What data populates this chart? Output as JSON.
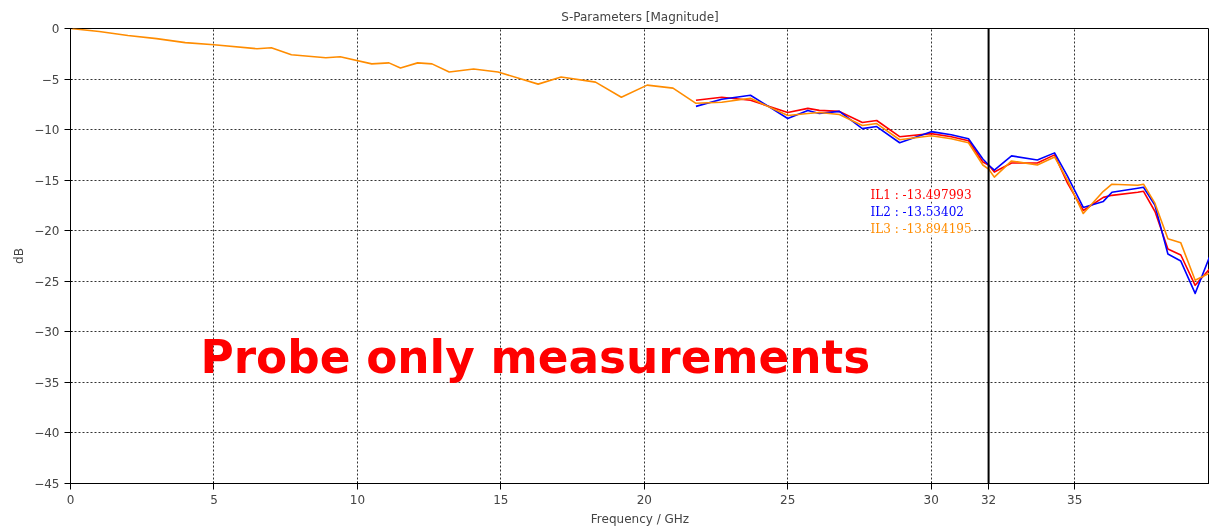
{
  "chart_data": {
    "type": "line",
    "title": "S-Parameters [Magnitude]",
    "xlabel": "Frequency / GHz",
    "ylabel": "dB",
    "x": [
      0,
      1,
      2,
      3,
      4,
      5,
      6.5,
      7,
      7.7,
      8.9,
      9.4,
      10.5,
      11.1,
      11.5,
      12.1,
      12.6,
      13.2,
      14.05,
      14.9,
      16.3,
      17.1,
      18.3,
      19.2,
      20.1,
      21.0,
      21.8,
      22.7,
      23.7,
      25.0,
      25.7,
      26.1,
      26.8,
      27.6,
      28.1,
      28.9,
      30.0,
      30.7,
      31.3,
      31.8,
      32.0,
      32.2,
      32.8,
      33.7,
      34.3,
      34.75,
      35.3,
      36.0,
      36.3,
      37.2,
      37.4,
      37.8,
      38.25,
      38.7,
      39.2,
      39.7
    ],
    "series": [
      {
        "name": "IL1",
        "color": "#ff0000",
        "values": [
          null,
          null,
          null,
          null,
          null,
          null,
          null,
          null,
          null,
          null,
          null,
          null,
          null,
          null,
          null,
          null,
          null,
          null,
          null,
          null,
          null,
          null,
          null,
          null,
          null,
          -7.1,
          -6.8,
          -7.1,
          -8.3,
          -7.9,
          -8.1,
          -8.2,
          -9.3,
          -9.1,
          -10.7,
          -10.4,
          -10.7,
          -11.1,
          -13.2,
          -13.5,
          -14.2,
          -13.3,
          -13.3,
          -12.5,
          -15.3,
          -18.0,
          -16.7,
          -16.5,
          -16.2,
          -16.1,
          -18.1,
          -21.8,
          -22.4,
          -25.4,
          -23.8
        ]
      },
      {
        "name": "IL2",
        "color": "#0000ff",
        "values": [
          null,
          null,
          null,
          null,
          null,
          null,
          null,
          null,
          null,
          null,
          null,
          null,
          null,
          null,
          null,
          null,
          null,
          null,
          null,
          null,
          null,
          null,
          null,
          null,
          null,
          -7.7,
          -7.0,
          -6.6,
          -8.9,
          -8.1,
          -8.4,
          -8.2,
          -9.9,
          -9.7,
          -11.3,
          -10.2,
          -10.5,
          -10.9,
          -12.9,
          -13.5,
          -14.0,
          -12.6,
          -13.0,
          -12.3,
          -14.6,
          -17.7,
          -17.1,
          -16.2,
          -15.8,
          -15.7,
          -17.5,
          -22.3,
          -23.0,
          -26.2,
          -22.6
        ]
      },
      {
        "name": "IL3",
        "color": "#ff8c00",
        "values": [
          0,
          -0.3,
          -0.7,
          -1.0,
          -1.4,
          -1.6,
          -2.0,
          -1.9,
          -2.6,
          -2.9,
          -2.8,
          -3.5,
          -3.4,
          -3.9,
          -3.4,
          -3.5,
          -4.3,
          -4.0,
          -4.3,
          -5.5,
          -4.8,
          -5.3,
          -6.8,
          -5.6,
          -5.9,
          -7.4,
          -7.3,
          -6.9,
          -8.6,
          -8.4,
          -8.3,
          -8.5,
          -9.6,
          -9.4,
          -11.0,
          -10.6,
          -10.9,
          -11.3,
          -13.5,
          -13.9,
          -14.7,
          -13.1,
          -13.5,
          -12.7,
          -15.0,
          -18.3,
          -16.1,
          -15.4,
          -15.5,
          -15.4,
          -17.3,
          -20.8,
          -21.2,
          -24.9,
          -24.2
        ]
      }
    ],
    "xlim": [
      0,
      39.7
    ],
    "xticks": [
      0,
      5,
      10,
      15,
      20,
      25,
      30,
      35
    ],
    "ylim": [
      -45,
      0
    ],
    "yticks": [
      -45,
      -40,
      -35,
      -30,
      -25,
      -20,
      -15,
      -10,
      -5,
      0
    ],
    "grid": true,
    "legend": false,
    "line_style": "solid",
    "ref_lines": [
      {
        "axis": "x",
        "value": 32,
        "label": "32",
        "color": "#000000"
      }
    ],
    "annotations": [
      ": -13.497993",
      ": -13.53402",
      ": -13.894195",
      "Probe only measurements"
    ]
  }
}
